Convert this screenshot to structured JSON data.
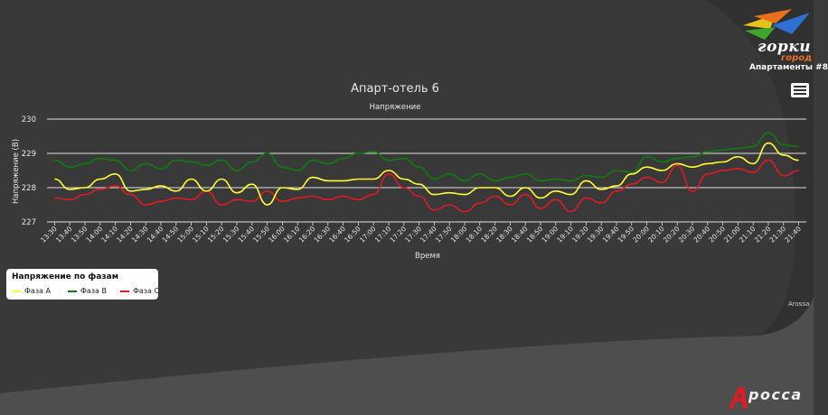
{
  "brand": {
    "name": "горки",
    "sub": "город",
    "apartment": "Апартаменты #8"
  },
  "menu": {
    "icon": "hamburger-menu-icon"
  },
  "legend": {
    "title": "Напряжение по фазам",
    "items": [
      {
        "label": "Фаза A",
        "color": "#ffff33"
      },
      {
        "label": "Фаза B",
        "color": "#0e7d0e"
      },
      {
        "label": "Фаза C",
        "color": "#e01b24"
      }
    ]
  },
  "credit": "Arossa",
  "footer_logo": {
    "text": "росса",
    "mark": "A"
  },
  "chart_data": {
    "type": "line",
    "title": "Апарт-отель 6",
    "subtitle": "Напряжение",
    "xlabel": "Время",
    "ylabel": "Напряжение (B)",
    "ylim": [
      227,
      230
    ],
    "yticks": [
      227,
      228,
      229,
      230
    ],
    "grid": true,
    "legend_position": "bottom-left",
    "x_tick_labels": [
      "13:30",
      "13:40",
      "13:50",
      "14:00",
      "14:10",
      "14:20",
      "14:30",
      "14:40",
      "14:50",
      "15:00",
      "15:10",
      "15:20",
      "15:30",
      "15:40",
      "15:50",
      "16:00",
      "16:10",
      "16:20",
      "16:30",
      "16:40",
      "16:50",
      "17:00",
      "17:10",
      "17:20",
      "17:30",
      "17:40",
      "17:50",
      "18:00",
      "18:10",
      "18:20",
      "18:30",
      "18:40",
      "18:50",
      "19:00",
      "19:10",
      "19:20",
      "19:30",
      "19:40",
      "19:50",
      "20:00",
      "20:10",
      "20:20",
      "20:30",
      "20:40",
      "20:50",
      "21:00",
      "21:10",
      "21:20",
      "21:30",
      "21:40"
    ],
    "series": [
      {
        "name": "Фаза A",
        "color": "#ffff33",
        "values": [
          228.25,
          227.95,
          228.0,
          228.25,
          228.4,
          227.9,
          227.95,
          228.05,
          227.9,
          228.25,
          227.9,
          228.25,
          227.85,
          228.1,
          227.5,
          228.0,
          227.95,
          228.3,
          228.2,
          228.2,
          228.25,
          228.25,
          228.5,
          228.25,
          228.1,
          227.8,
          227.85,
          227.8,
          228.0,
          228.0,
          227.75,
          228.0,
          227.7,
          227.9,
          227.8,
          228.2,
          227.95,
          228.05,
          228.4,
          228.6,
          228.5,
          228.7,
          228.6,
          228.7,
          228.75,
          228.9,
          228.7,
          229.3,
          228.95,
          228.8
        ]
      },
      {
        "name": "Фаза B",
        "color": "#0e7d0e",
        "values": [
          228.8,
          228.6,
          228.7,
          228.85,
          228.8,
          228.5,
          228.7,
          228.55,
          228.8,
          228.75,
          228.65,
          228.8,
          228.5,
          228.75,
          229.0,
          228.6,
          228.5,
          228.8,
          228.7,
          228.85,
          229.0,
          229.05,
          228.8,
          228.85,
          228.6,
          228.25,
          228.4,
          228.2,
          228.4,
          228.2,
          228.3,
          228.4,
          228.2,
          228.25,
          228.2,
          228.35,
          228.3,
          228.5,
          228.45,
          228.9,
          228.75,
          228.85,
          228.9,
          229.05,
          229.1,
          229.15,
          229.2,
          229.6,
          229.25,
          229.2
        ]
      },
      {
        "name": "Фаза C",
        "color": "#e01b24",
        "values": [
          227.7,
          227.65,
          227.8,
          227.95,
          228.05,
          227.8,
          227.5,
          227.6,
          227.7,
          227.65,
          227.9,
          227.5,
          227.65,
          227.6,
          227.9,
          227.6,
          227.7,
          227.75,
          227.65,
          227.75,
          227.65,
          227.8,
          228.4,
          228.0,
          227.75,
          227.35,
          227.5,
          227.3,
          227.55,
          227.75,
          227.5,
          227.8,
          227.4,
          227.65,
          227.3,
          227.7,
          227.55,
          227.9,
          228.1,
          228.3,
          228.15,
          228.65,
          227.9,
          228.4,
          228.5,
          228.55,
          228.45,
          228.8,
          228.35,
          228.5
        ]
      }
    ]
  }
}
